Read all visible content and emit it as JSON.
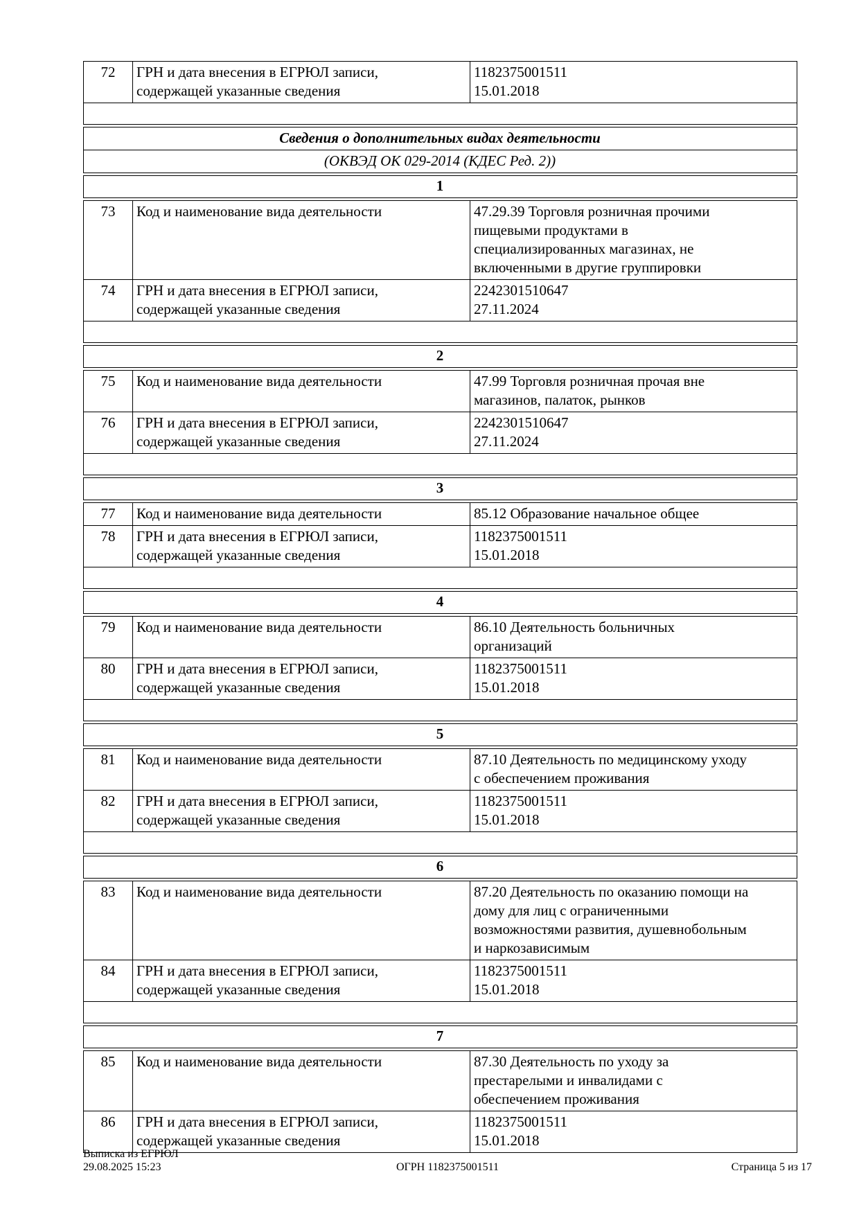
{
  "document": {
    "labels": {
      "activity": "Код и наименование вида деятельности",
      "grn": "ГРН и дата внесения в ЕГРЮЛ записи,\nсодержащей указанные сведения"
    },
    "continuation_row": {
      "num": "72",
      "value": "1182375001511\n15.01.2018"
    },
    "section_title": "Сведения о дополнительных видах деятельности",
    "section_subtitle": "(ОКВЭД ОК 029-2014 (КДЕС Ред. 2))",
    "sections": [
      {
        "number": "1",
        "activity_num": "73",
        "activity_value": "47.29.39 Торговля розничная прочими\nпищевыми продуктами в\nспециализированных магазинах, не\nвключенными в другие группировки",
        "grn_num": "74",
        "grn_value": "2242301510647\n27.11.2024"
      },
      {
        "number": "2",
        "activity_num": "75",
        "activity_value": "47.99 Торговля розничная прочая вне\nмагазинов, палаток, рынков",
        "grn_num": "76",
        "grn_value": "2242301510647\n27.11.2024"
      },
      {
        "number": "3",
        "activity_num": "77",
        "activity_value": "85.12 Образование начальное общее",
        "grn_num": "78",
        "grn_value": "1182375001511\n15.01.2018"
      },
      {
        "number": "4",
        "activity_num": "79",
        "activity_value": "86.10 Деятельность больничных\nорганизаций",
        "grn_num": "80",
        "grn_value": "1182375001511\n15.01.2018"
      },
      {
        "number": "5",
        "activity_num": "81",
        "activity_value": "87.10 Деятельность по медицинскому уходу\nс обеспечением проживания",
        "grn_num": "82",
        "grn_value": "1182375001511\n15.01.2018"
      },
      {
        "number": "6",
        "activity_num": "83",
        "activity_value": "87.20 Деятельность по оказанию помощи на\nдому для лиц с ограниченными\nвозможностями развития, душевнобольным\nи наркозависимым",
        "grn_num": "84",
        "grn_value": "1182375001511\n15.01.2018"
      },
      {
        "number": "7",
        "activity_num": "85",
        "activity_value": "87.30 Деятельность по уходу за\nпрестарелыми и инвалидами с\nобеспечением проживания",
        "grn_num": "86",
        "grn_value": "1182375001511\n15.01.2018"
      }
    ]
  },
  "footer": {
    "doc_type": "Выписка из ЕГРЮЛ",
    "generated": "29.08.2025 15:23",
    "ogrn": "ОГРН 1182375001511",
    "page": "Страница 5 из 17"
  }
}
